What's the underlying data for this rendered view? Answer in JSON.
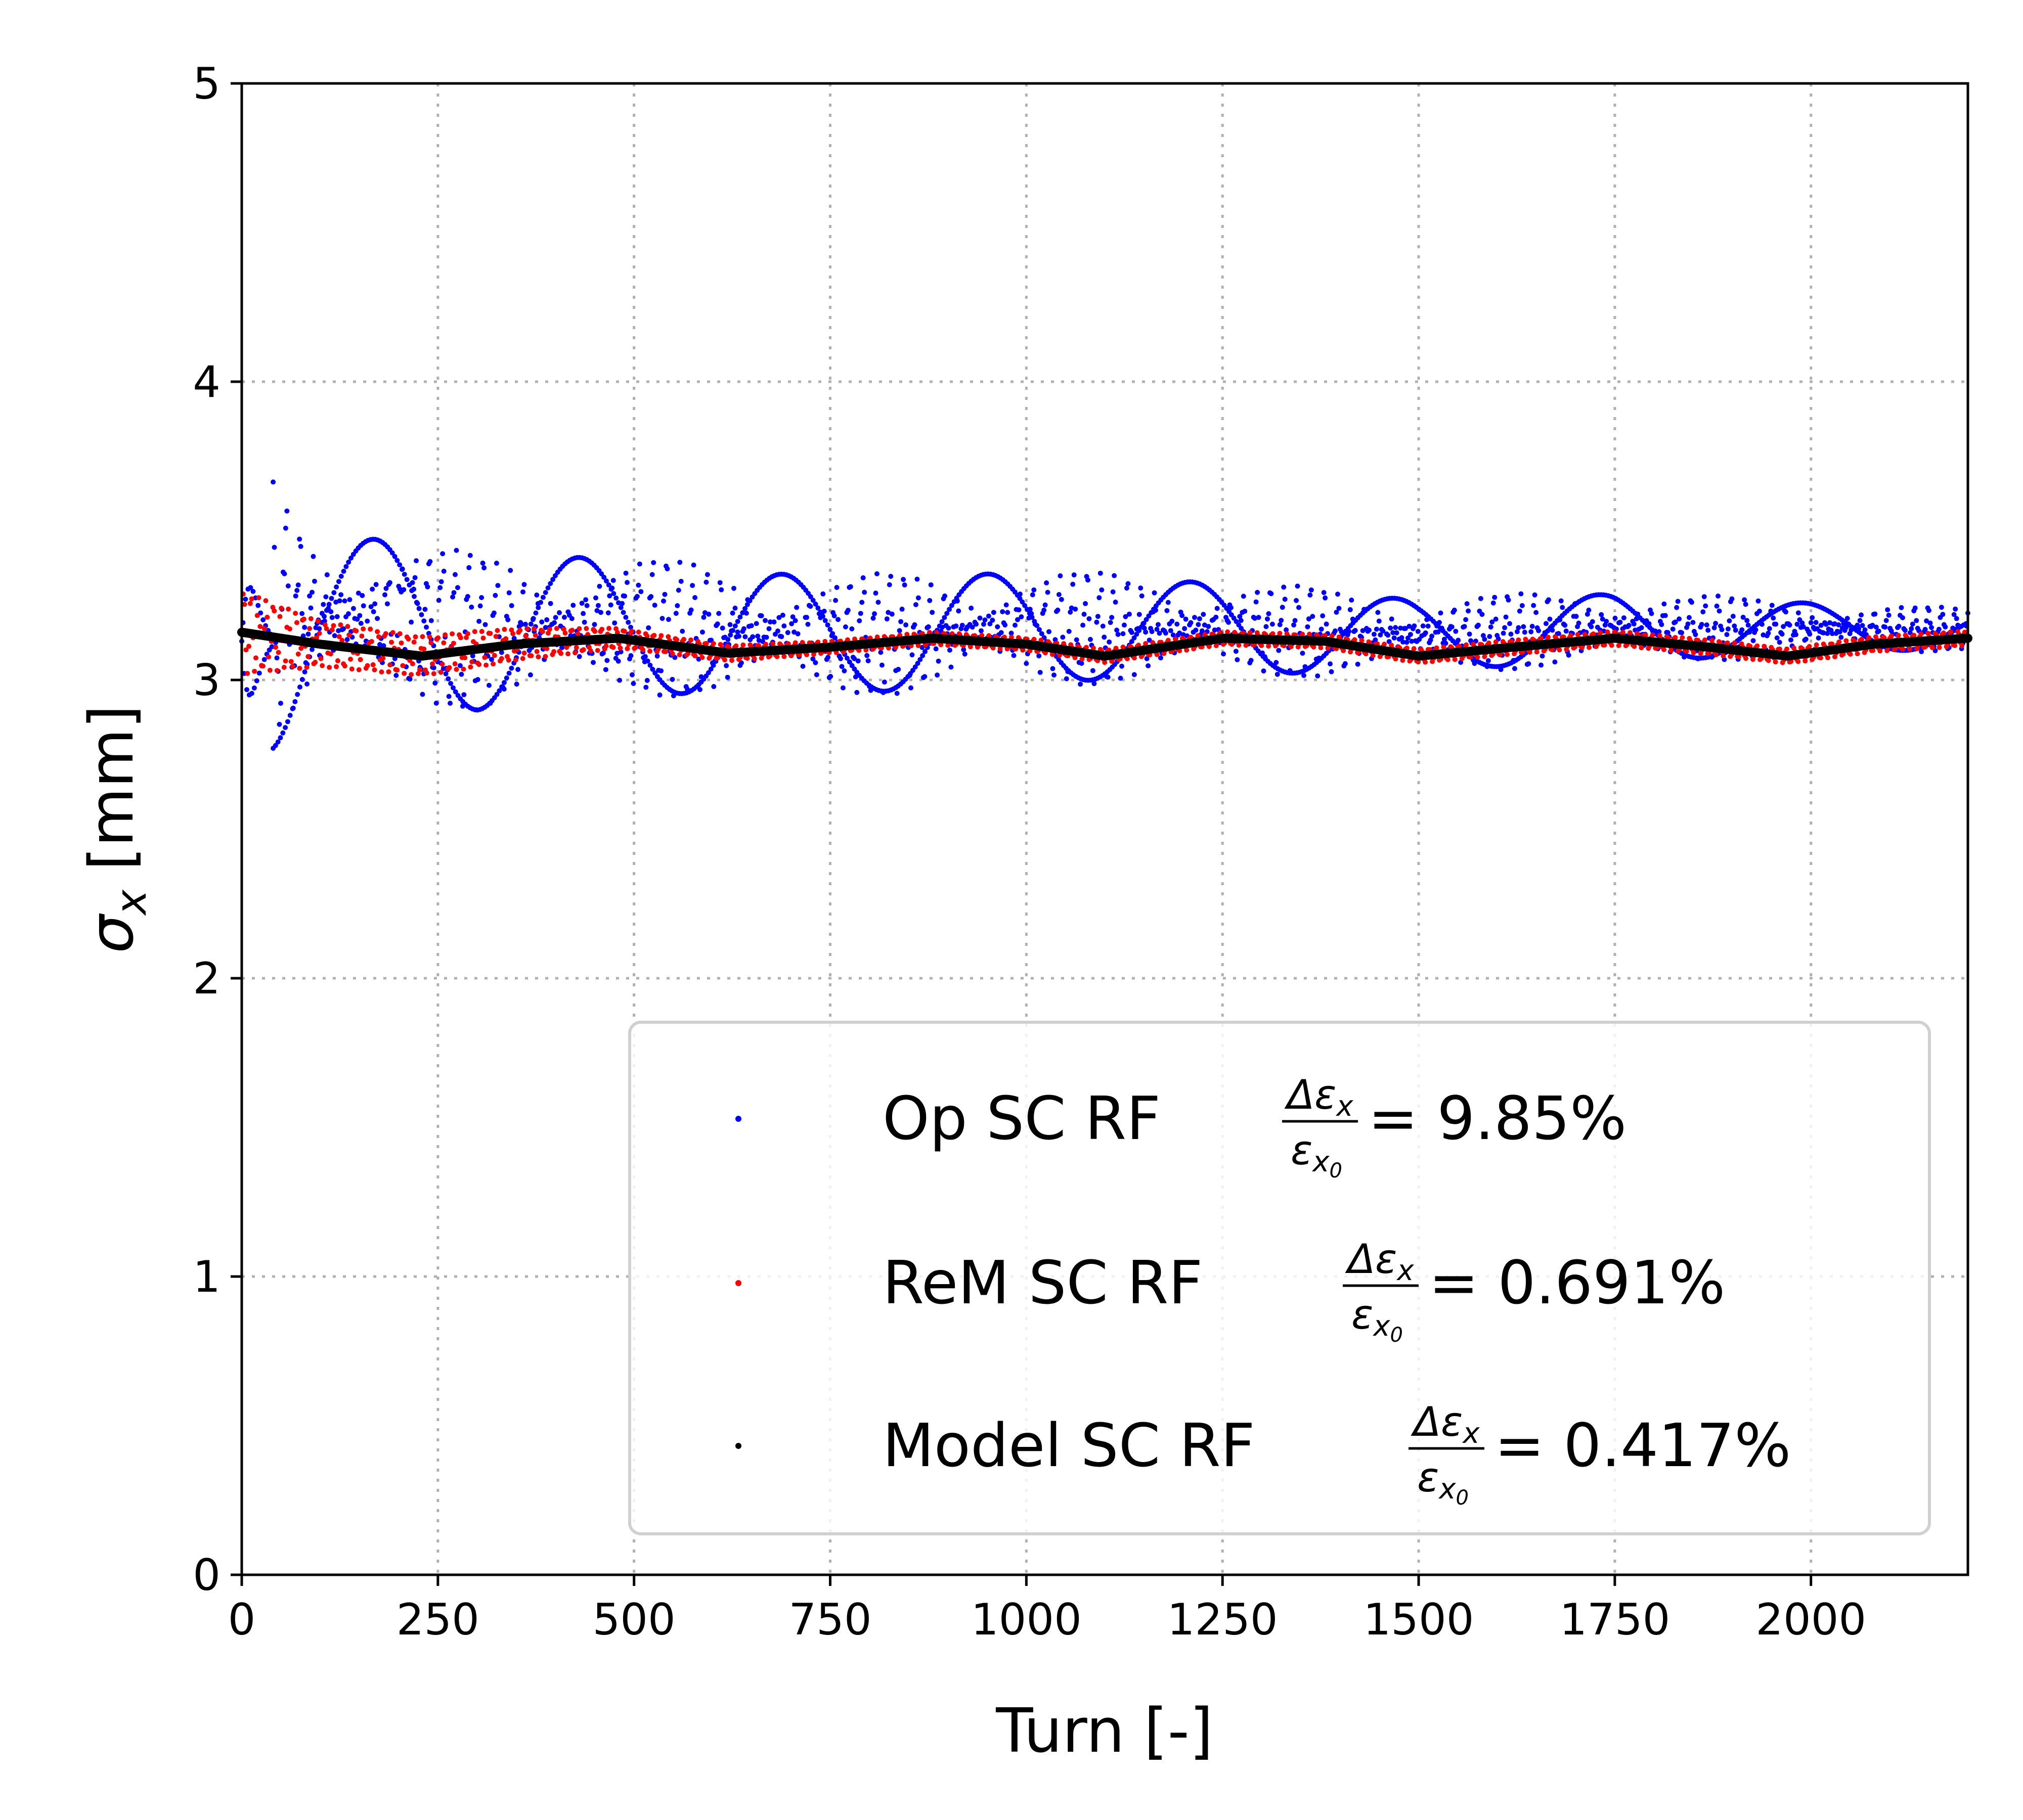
{
  "chart_data": {
    "type": "scatter",
    "xlabel": "Turn [-]",
    "ylabel": "σx [mm]",
    "xlim": [
      0,
      2200
    ],
    "ylim": [
      0,
      5
    ],
    "xticks": [
      "0",
      "250",
      "500",
      "750",
      "1000",
      "1250",
      "1500",
      "1750",
      "2000"
    ],
    "yticks": [
      "0",
      "1",
      "2",
      "3",
      "4",
      "5"
    ],
    "grid": true,
    "legend_position": "lower-right",
    "series": [
      {
        "name": "Op SC RF",
        "color": "#0000ff",
        "ratio_value": "= 9.85%",
        "mean": 3.13,
        "initial_amplitude": 0.7,
        "decay_turns": 12,
        "envelope": [
          {
            "turn": 0,
            "min": 2.6,
            "max": 3.88
          },
          {
            "turn": 100,
            "min": 2.9,
            "max": 3.53
          },
          {
            "turn": 300,
            "min": 2.87,
            "max": 3.45
          },
          {
            "turn": 500,
            "min": 2.93,
            "max": 3.43
          },
          {
            "turn": 750,
            "min": 2.93,
            "max": 3.36
          },
          {
            "turn": 1000,
            "min": 2.97,
            "max": 3.38
          },
          {
            "turn": 1250,
            "min": 3.0,
            "max": 3.34
          },
          {
            "turn": 1500,
            "min": 3.02,
            "max": 3.28
          },
          {
            "turn": 1750,
            "min": 3.05,
            "max": 3.3
          },
          {
            "turn": 2200,
            "min": 3.1,
            "max": 3.24
          }
        ]
      },
      {
        "name": "ReM SC RF",
        "color": "#ff0000",
        "ratio_value": "= 0.691%",
        "envelope": [
          {
            "turn": 0,
            "min": 3.02,
            "max": 3.3
          },
          {
            "turn": 100,
            "min": 3.05,
            "max": 3.2
          },
          {
            "turn": 300,
            "min": 3.05,
            "max": 3.17
          },
          {
            "turn": 500,
            "min": 3.1,
            "max": 3.16
          },
          {
            "turn": 750,
            "min": 3.1,
            "max": 3.14
          },
          {
            "turn": 2200,
            "min": 3.1,
            "max": 3.15
          }
        ]
      },
      {
        "name": "Model SC RF",
        "color": "#000000",
        "ratio_value": "= 0.417%",
        "points": [
          {
            "turn": 0,
            "sigma": 3.16
          },
          {
            "turn": 100,
            "sigma": 3.12
          },
          {
            "turn": 230,
            "sigma": 3.08
          },
          {
            "turn": 350,
            "sigma": 3.12
          },
          {
            "turn": 480,
            "sigma": 3.14
          },
          {
            "turn": 620,
            "sigma": 3.09
          },
          {
            "turn": 750,
            "sigma": 3.11
          },
          {
            "turn": 880,
            "sigma": 3.14
          },
          {
            "turn": 1000,
            "sigma": 3.12
          },
          {
            "turn": 1100,
            "sigma": 3.08
          },
          {
            "turn": 1250,
            "sigma": 3.14
          },
          {
            "turn": 1380,
            "sigma": 3.13
          },
          {
            "turn": 1500,
            "sigma": 3.08
          },
          {
            "turn": 1620,
            "sigma": 3.11
          },
          {
            "turn": 1750,
            "sigma": 3.14
          },
          {
            "turn": 1870,
            "sigma": 3.11
          },
          {
            "turn": 1970,
            "sigma": 3.08
          },
          {
            "turn": 2080,
            "sigma": 3.12
          },
          {
            "turn": 2200,
            "sigma": 3.14
          }
        ]
      }
    ]
  }
}
